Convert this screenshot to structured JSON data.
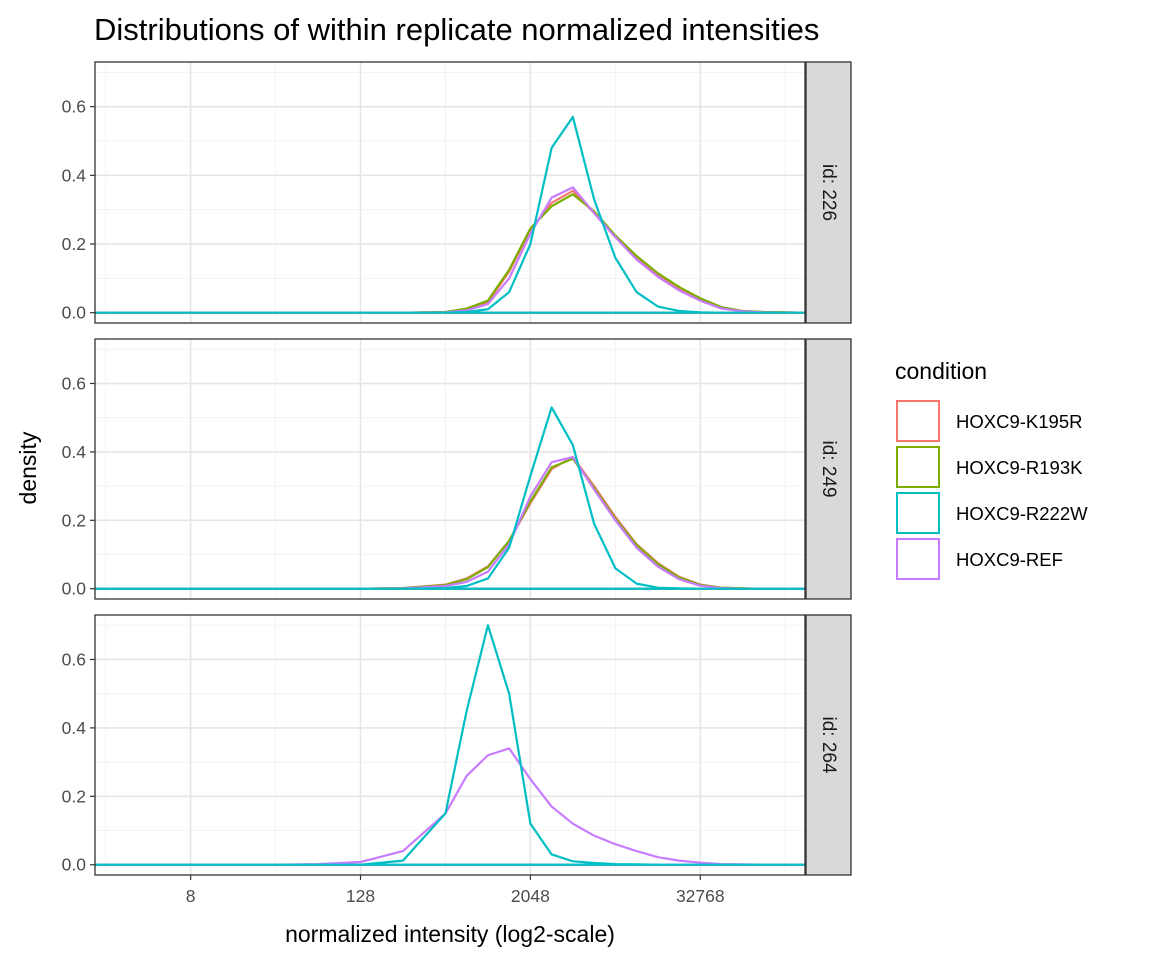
{
  "chart_data": {
    "type": "line",
    "title": "Distributions of within replicate normalized intensities",
    "xlabel": "normalized intensity (log2-scale)",
    "ylabel": "density",
    "x_scale": "log2",
    "x_ticks": [
      8,
      128,
      2048,
      32768
    ],
    "x_tick_labels": [
      "8",
      "128",
      "2048",
      "32768"
    ],
    "xlim": [
      1.68,
      181000
    ],
    "y_ticks": [
      0.0,
      0.2,
      0.4,
      0.6
    ],
    "y_tick_labels": [
      "0.0",
      "0.2",
      "0.4",
      "0.6"
    ],
    "ylim": [
      -0.03,
      0.73
    ],
    "grid": true,
    "legend_position": "right",
    "legend": {
      "title": "condition",
      "entries": [
        {
          "name": "HOXC9-K195R",
          "color": "#F8766D"
        },
        {
          "name": "HOXC9-R193K",
          "color": "#7CAE00"
        },
        {
          "name": "HOXC9-R222W",
          "color": "#00BFC4"
        },
        {
          "name": "HOXC9-REF",
          "color": "#C77CFF"
        }
      ]
    },
    "x_grid": [
      1.68,
      32,
      64,
      128,
      256,
      512,
      724,
      1024,
      1448,
      2048,
      2896,
      4096,
      5793,
      8192,
      11585,
      16384,
      23170,
      32768,
      46341,
      65536,
      92682,
      131072,
      181000
    ],
    "panels": [
      {
        "strip": "id: 226",
        "series": [
          {
            "name": "HOXC9-K195R",
            "color": "#F8766D",
            "y": [
              0,
              0,
              0,
              0,
              0,
              0.002,
              0.01,
              0.03,
              0.12,
              0.24,
              0.32,
              0.355,
              0.29,
              0.22,
              0.16,
              0.11,
              0.07,
              0.04,
              0.015,
              0.005,
              0.002,
              0.001,
              0
            ]
          },
          {
            "name": "HOXC9-R193K",
            "color": "#7CAE00",
            "y": [
              0,
              0,
              0,
              0,
              0,
              0.002,
              0.012,
              0.035,
              0.125,
              0.245,
              0.31,
              0.345,
              0.295,
              0.225,
              0.165,
              0.115,
              0.075,
              0.042,
              0.016,
              0.005,
              0.002,
              0.001,
              0
            ]
          },
          {
            "name": "HOXC9-REF",
            "color": "#C77CFF",
            "y": [
              0,
              0,
              0,
              0,
              0,
              0.001,
              0.007,
              0.025,
              0.1,
              0.23,
              0.335,
              0.365,
              0.29,
              0.22,
              0.155,
              0.105,
              0.065,
              0.035,
              0.012,
              0.004,
              0.001,
              0,
              0
            ]
          },
          {
            "name": "HOXC9-R222W",
            "color": "#00BFC4",
            "y": [
              0,
              0,
              0,
              0,
              0,
              0,
              0.002,
              0.01,
              0.06,
              0.2,
              0.48,
              0.57,
              0.33,
              0.16,
              0.06,
              0.018,
              0.005,
              0.001,
              0,
              0,
              0,
              0,
              0
            ]
          }
        ]
      },
      {
        "strip": "id: 249",
        "series": [
          {
            "name": "HOXC9-K195R",
            "color": "#F8766D",
            "y": [
              0,
              0,
              0,
              0,
              0.002,
              0.012,
              0.03,
              0.065,
              0.14,
              0.25,
              0.35,
              0.385,
              0.3,
              0.21,
              0.13,
              0.075,
              0.035,
              0.012,
              0.003,
              0.001,
              0,
              0,
              0
            ]
          },
          {
            "name": "HOXC9-R193K",
            "color": "#7CAE00",
            "y": [
              0,
              0,
              0,
              0,
              0.002,
              0.011,
              0.028,
              0.063,
              0.14,
              0.255,
              0.355,
              0.38,
              0.295,
              0.205,
              0.128,
              0.072,
              0.033,
              0.011,
              0.003,
              0.001,
              0,
              0,
              0
            ]
          },
          {
            "name": "HOXC9-REF",
            "color": "#C77CFF",
            "y": [
              0,
              0,
              0,
              0,
              0.001,
              0.008,
              0.02,
              0.05,
              0.13,
              0.27,
              0.37,
              0.385,
              0.29,
              0.2,
              0.12,
              0.065,
              0.028,
              0.009,
              0.002,
              0,
              0,
              0,
              0
            ]
          },
          {
            "name": "HOXC9-R222W",
            "color": "#00BFC4",
            "y": [
              0,
              0,
              0,
              0,
              0,
              0.002,
              0.008,
              0.03,
              0.12,
              0.33,
              0.53,
              0.42,
              0.19,
              0.06,
              0.015,
              0.003,
              0.001,
              0,
              0,
              0,
              0,
              0,
              0
            ]
          }
        ]
      },
      {
        "strip": "id: 264",
        "series": [
          {
            "name": "HOXC9-REF",
            "color": "#C77CFF",
            "y": [
              0,
              0,
              0.002,
              0.008,
              0.04,
              0.15,
              0.26,
              0.32,
              0.34,
              0.25,
              0.17,
              0.12,
              0.085,
              0.06,
              0.04,
              0.022,
              0.012,
              0.006,
              0.002,
              0.001,
              0,
              0,
              0
            ]
          },
          {
            "name": "HOXC9-R222W",
            "color": "#00BFC4",
            "y": [
              0,
              0,
              0,
              0,
              0.012,
              0.15,
              0.45,
              0.7,
              0.5,
              0.12,
              0.03,
              0.01,
              0.005,
              0.002,
              0.001,
              0,
              0,
              0,
              0,
              0,
              0,
              0,
              0
            ]
          }
        ]
      }
    ]
  }
}
